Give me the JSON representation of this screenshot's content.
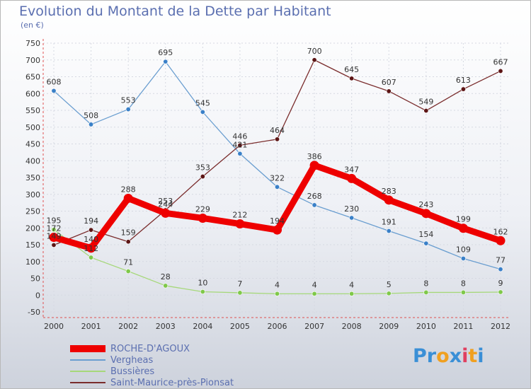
{
  "title": "Evolution du Montant de la Dette par Habitant",
  "unit": "(en €)",
  "logo_text": "Proxiti",
  "logo_colors": [
    "#3a8fd6",
    "#3a8fd6",
    "#f0a020",
    "#3a8fd6",
    "#e04060",
    "#f0a020",
    "#3a8fd6"
  ],
  "chart_data": {
    "type": "line",
    "title": "Evolution du Montant de la Dette par Habitant",
    "ylabel": "(en €)",
    "xlabel": "",
    "ylim": [
      -50,
      750
    ],
    "yticks": [
      -50,
      0,
      50,
      100,
      150,
      200,
      250,
      300,
      350,
      400,
      450,
      500,
      550,
      600,
      650,
      700,
      750
    ],
    "categories": [
      "2000",
      "2001",
      "2002",
      "2003",
      "2004",
      "2005",
      "2006",
      "2007",
      "2008",
      "2009",
      "2010",
      "2011",
      "2012"
    ],
    "grid": true,
    "series": [
      {
        "name": "ROCHE-D'AGOUX",
        "color": "#ee0000",
        "marker": "#ee0000",
        "values": [
          172,
          140,
          288,
          244,
          229,
          212,
          194,
          386,
          347,
          283,
          243,
          199,
          162
        ],
        "labels": [
          "172",
          "140",
          "288",
          "244",
          "229",
          "212",
          "194",
          "386",
          "347",
          "283",
          "243",
          "199",
          "162"
        ]
      },
      {
        "name": "Vergheas",
        "color": "#6a9ed0",
        "marker": "#3a80c8",
        "values": [
          608,
          508,
          553,
          695,
          545,
          421,
          322,
          268,
          230,
          191,
          154,
          109,
          77
        ],
        "labels": [
          "608",
          "508",
          "553",
          "695",
          "545",
          "421",
          "322",
          "268",
          "230",
          "191",
          "154",
          "109",
          "77"
        ]
      },
      {
        "name": "Bussières",
        "color": "#a6d87a",
        "marker": "#7fc84a",
        "values": [
          195,
          112,
          71,
          28,
          10,
          7,
          4,
          4,
          4,
          5,
          8,
          8,
          9
        ],
        "labels": [
          "195",
          "112",
          "71",
          "28",
          "10",
          "7",
          "4",
          "4",
          "4",
          "5",
          "8",
          "8",
          "9"
        ]
      },
      {
        "name": "Saint-Maurice-près-Pionsat",
        "color": "#7a2c2c",
        "marker": "#5c1515",
        "values": [
          149,
          194,
          159,
          253,
          353,
          446,
          464,
          700,
          645,
          607,
          549,
          613,
          667
        ],
        "labels": [
          "149",
          "194",
          "159",
          "253",
          "353",
          "446",
          "464",
          "700",
          "645",
          "607",
          "549",
          "613",
          "667"
        ]
      }
    ]
  }
}
